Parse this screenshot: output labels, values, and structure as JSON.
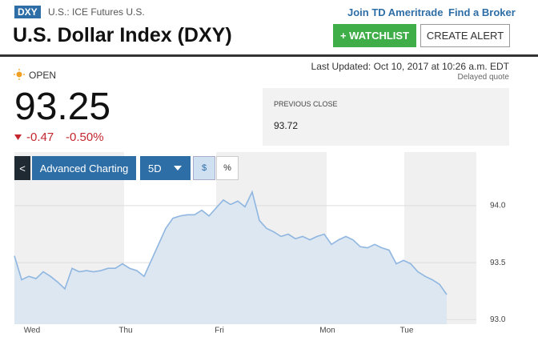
{
  "header": {
    "symbol": "DXY",
    "exchange": "U.S.: ICE Futures U.S.",
    "links": [
      "Join TD Ameritrade",
      "Find a Broker"
    ],
    "title": "U.S. Dollar Index (DXY)",
    "watchlist": "+ WATCHLIST",
    "alert": "CREATE ALERT"
  },
  "quote": {
    "status": "OPEN",
    "last_updated": "Last Updated: Oct 10, 2017 at 10:26 a.m. EDT",
    "delayed": "Delayed quote",
    "price": "93.25",
    "change": "-0.47",
    "change_pct": "-0.50%",
    "previous_close_label": "PREVIOUS CLOSE",
    "previous_close": "93.72"
  },
  "controls": {
    "back": "<",
    "advanced": "Advanced Charting",
    "range": "5D",
    "dollar": "$",
    "percent": "%"
  },
  "chart_data": {
    "type": "area",
    "color": "#8fb6e0",
    "fill": "#dce7f2",
    "categories": [
      null,
      null,
      "Wed",
      null,
      null,
      null,
      null,
      null,
      null,
      null,
      null,
      null,
      null,
      null,
      null,
      "Thu",
      null,
      null,
      null,
      null,
      null,
      null,
      null,
      null,
      null,
      null,
      null,
      null,
      "Fri",
      null,
      null,
      null,
      null,
      null,
      null,
      null,
      null,
      null,
      null,
      null,
      null,
      null,
      null,
      "Mon",
      null,
      null,
      null,
      null,
      null,
      null,
      null,
      null,
      null,
      null,
      "Tue",
      null,
      null,
      null,
      null,
      null,
      null
    ],
    "series": [
      {
        "values": [
          93.56,
          93.35,
          93.38,
          93.36,
          93.42,
          93.38,
          93.33,
          93.27,
          93.45,
          93.42,
          93.43,
          93.42,
          93.43,
          93.45,
          93.45,
          93.49,
          93.45,
          93.43,
          93.38,
          93.52,
          93.66,
          93.8,
          93.89,
          93.91,
          93.92,
          93.92,
          93.96,
          93.91,
          93.98,
          94.05,
          94.01,
          94.04,
          93.99,
          94.12,
          93.87,
          93.8,
          93.77,
          93.73,
          93.75,
          93.71,
          93.73,
          93.7,
          93.73,
          93.75,
          93.66,
          93.7,
          93.73,
          93.7,
          93.64,
          93.63,
          93.66,
          93.63,
          93.61,
          93.49,
          93.52,
          93.49,
          93.42,
          93.38,
          93.35,
          93.31,
          93.22
        ]
      }
    ],
    "ylim": [
      92.96,
      94.47
    ],
    "yticks": [
      {
        "value": 93,
        "label": "93.0"
      },
      93.5,
      {
        "value": 94,
        "label": "94.0"
      }
    ],
    "grid": true
  }
}
